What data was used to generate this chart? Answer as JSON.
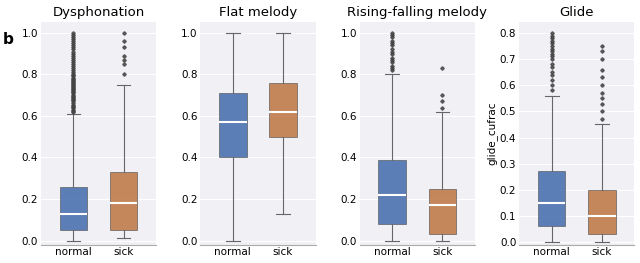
{
  "titles": [
    "Dysphonation",
    "Flat melody",
    "Rising-falling melody",
    "Glide"
  ],
  "xlabel": [
    "normal",
    "sick"
  ],
  "ylabel_last": "glide_cufrac",
  "blue_color": "#4c72b0",
  "orange_color": "#c07c4a",
  "bg_color": "#f0f0f5",
  "grid_color": "white",
  "plots": [
    {
      "name": "Dysphonation",
      "ylim": [
        -0.02,
        1.05
      ],
      "yticks": [
        0.0,
        0.2,
        0.4,
        0.6,
        0.8,
        1.0
      ],
      "normal": {
        "whislo": 0.0,
        "q1": 0.05,
        "med": 0.13,
        "q3": 0.26,
        "whishi": 0.61,
        "fliers_high": [
          0.62,
          0.63,
          0.64,
          0.65,
          0.66,
          0.67,
          0.68,
          0.69,
          0.7,
          0.71,
          0.72,
          0.73,
          0.74,
          0.75,
          0.76,
          0.77,
          0.78,
          0.79,
          0.8,
          0.81,
          0.82,
          0.83,
          0.84,
          0.85,
          0.86,
          0.87,
          0.88,
          0.89,
          0.9,
          0.91,
          0.92,
          0.93,
          0.94,
          0.95,
          0.96,
          0.97,
          0.98,
          0.99,
          1.0,
          0.625,
          0.645,
          0.655,
          0.675,
          0.685,
          0.695,
          0.715,
          0.725,
          0.735,
          0.745,
          0.755,
          0.765,
          0.775,
          0.785,
          0.795
        ],
        "fliers_low": []
      },
      "sick": {
        "whislo": 0.01,
        "q1": 0.05,
        "med": 0.18,
        "q3": 0.33,
        "whishi": 0.75,
        "fliers_high": [
          0.8,
          0.85,
          0.87,
          0.89,
          0.93,
          0.96,
          1.0
        ],
        "fliers_low": []
      }
    },
    {
      "name": "Flat melody",
      "ylim": [
        -0.02,
        1.05
      ],
      "yticks": [
        0.0,
        0.2,
        0.4,
        0.6,
        0.8,
        1.0
      ],
      "normal": {
        "whislo": 0.0,
        "q1": 0.4,
        "med": 0.57,
        "q3": 0.71,
        "whishi": 1.0,
        "fliers_high": [],
        "fliers_low": []
      },
      "sick": {
        "whislo": 0.13,
        "q1": 0.5,
        "med": 0.62,
        "q3": 0.76,
        "whishi": 1.0,
        "fliers_high": [],
        "fliers_low": []
      }
    },
    {
      "name": "Rising-falling melody",
      "ylim": [
        -0.02,
        1.05
      ],
      "yticks": [
        0.0,
        0.2,
        0.4,
        0.6,
        0.8,
        1.0
      ],
      "normal": {
        "whislo": 0.0,
        "q1": 0.08,
        "med": 0.22,
        "q3": 0.39,
        "whishi": 0.8,
        "fliers_high": [
          0.82,
          0.84,
          0.86,
          0.88,
          0.9,
          0.92,
          0.94,
          0.96,
          0.98,
          1.0,
          0.83,
          0.87,
          0.91,
          0.95,
          0.99
        ],
        "fliers_low": []
      },
      "sick": {
        "whislo": 0.0,
        "q1": 0.03,
        "med": 0.17,
        "q3": 0.25,
        "whishi": 0.62,
        "fliers_high": [
          0.64,
          0.67,
          0.7,
          0.83
        ],
        "fliers_low": []
      }
    },
    {
      "name": "Glide",
      "ylim": [
        -0.01,
        0.84
      ],
      "yticks": [
        0.0,
        0.1,
        0.2,
        0.3,
        0.4,
        0.5,
        0.6,
        0.7,
        0.8
      ],
      "ylabel": "glide_cufrac",
      "normal": {
        "whislo": 0.0,
        "q1": 0.06,
        "med": 0.15,
        "q3": 0.27,
        "whishi": 0.56,
        "fliers_high": [
          0.58,
          0.6,
          0.62,
          0.64,
          0.65,
          0.67,
          0.68,
          0.7,
          0.71,
          0.72,
          0.73,
          0.74,
          0.75,
          0.76,
          0.77,
          0.78,
          0.79,
          0.8
        ],
        "fliers_low": []
      },
      "sick": {
        "whislo": 0.0,
        "q1": 0.03,
        "med": 0.1,
        "q3": 0.2,
        "whishi": 0.45,
        "fliers_high": [
          0.47,
          0.5,
          0.53,
          0.55,
          0.57,
          0.6,
          0.63,
          0.66,
          0.7,
          0.73,
          0.75
        ],
        "fliers_low": []
      }
    }
  ]
}
